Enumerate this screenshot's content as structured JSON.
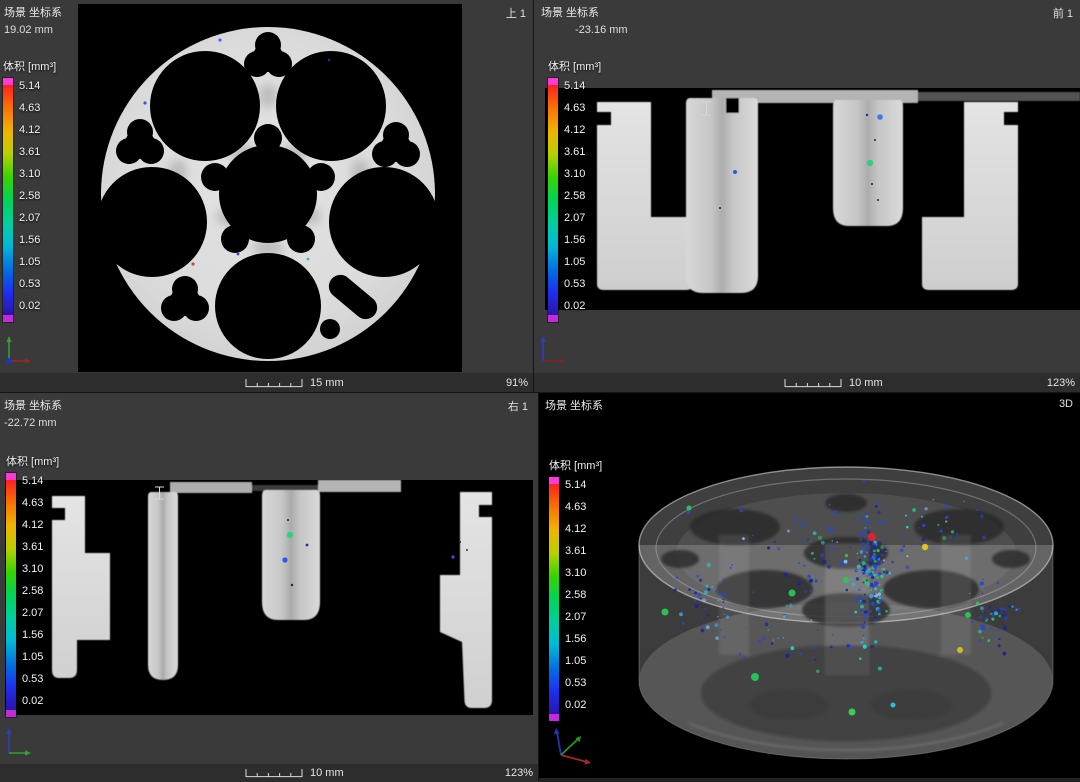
{
  "legend": {
    "title": "体积 [mm³]",
    "values": [
      "5.14",
      "4.63",
      "4.12",
      "3.61",
      "3.10",
      "2.58",
      "2.07",
      "1.56",
      "1.05",
      "0.53",
      "0.02"
    ]
  },
  "viewports": {
    "top": {
      "scene_label": "场景 坐标系",
      "position": "19.02 mm",
      "corner_label": "上 1",
      "ruler_label": "15 mm",
      "zoom": "91%"
    },
    "front": {
      "scene_label": "场景 坐标系",
      "position": "-23.16 mm",
      "corner_label": "前 1",
      "ruler_label": "10 mm",
      "zoom": "123%"
    },
    "right": {
      "scene_label": "场景 坐标系",
      "position": "-22.72 mm",
      "corner_label": "右 1",
      "ruler_label": "10 mm",
      "zoom": "123%"
    },
    "d3": {
      "scene_label": "场景 坐标系",
      "corner_label": "3D"
    }
  },
  "colors": {
    "legend_gradient": [
      "#ff2020",
      "#f97300",
      "#f0b400",
      "#b8d000",
      "#38d400",
      "#00d455",
      "#00cfa0",
      "#00b9d8",
      "#0072e0",
      "#1c30f0",
      "#2a14a8"
    ],
    "legend_cap_top": "#ff3ad9",
    "legend_cap_bottom": "#c22bd8",
    "defect_blue": "#2646d8",
    "defect_green": "#28c855",
    "defect_red": "#e82222",
    "defect_yellow": "#e8c81e"
  }
}
